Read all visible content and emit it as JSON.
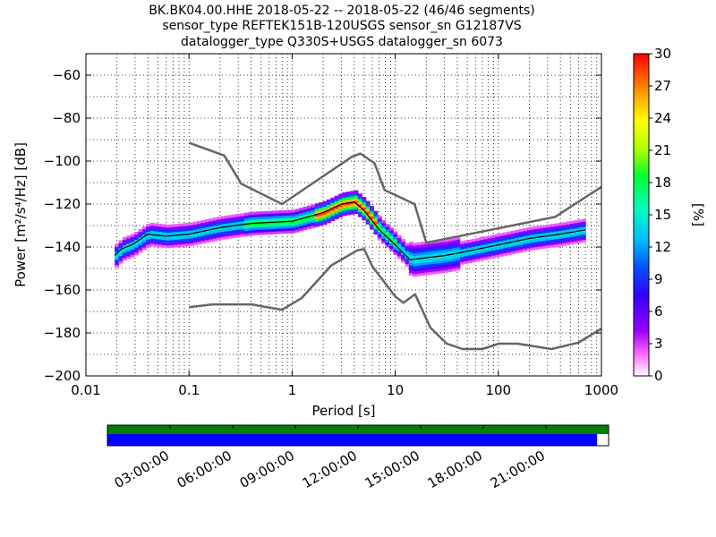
{
  "title_lines": [
    "BK.BK04.00.HHE   2018-05-22 -- 2018-05-22  (46/46 segments)",
    "sensor_type REFTEK151B-120USGS sensor_sn G12187VS",
    "datalogger_type Q330S+USGS datalogger_sn 6073"
  ],
  "colors": {
    "model_curve": "#666666",
    "mode_line": "#000000",
    "coverage_top": "#008000",
    "coverage_bottom": "#0000ff"
  },
  "chart_data": [
    {
      "type": "heatmap",
      "title": "BK.BK04.00.HHE   2018-05-22 -- 2018-05-22  (46/46 segments)",
      "xlabel": "Period [s]",
      "ylabel": "Power [m²/s⁴/Hz] [dB]",
      "xscale": "log",
      "xlim": [
        0.01,
        1000
      ],
      "ylim": [
        -200,
        -50
      ],
      "x_ticks": [
        "0.01",
        "0.1",
        "1",
        "10",
        "100",
        "1000"
      ],
      "y_ticks": [
        "−60",
        "−80",
        "−100",
        "−120",
        "−140",
        "−160",
        "−180",
        "−200"
      ],
      "colorbar": {
        "label": "[%]",
        "range": [
          0,
          30
        ],
        "ticks": [
          "0",
          "3",
          "6",
          "9",
          "12",
          "15",
          "18",
          "21",
          "24",
          "27",
          "30"
        ]
      },
      "grid": true,
      "series": [
        {
          "name": "",
          "style": "upper-model",
          "x": [
            0.1,
            0.22,
            0.32,
            0.8,
            3.8,
            4.6,
            6.3,
            7.9,
            15.4,
            20,
            354.8,
            1000
          ],
          "y": [
            -91.5,
            -97.4,
            -110.5,
            -120,
            -98,
            -96.5,
            -101,
            -113.5,
            -120,
            -138,
            -126,
            -112
          ]
        },
        {
          "name": "",
          "style": "lower-model",
          "x": [
            0.1,
            0.17,
            0.4,
            0.8,
            1.24,
            2.4,
            4.3,
            5,
            6,
            10,
            12,
            15.6,
            21.9,
            31.6,
            45,
            70,
            101,
            154,
            328,
            600,
            1000
          ],
          "y": [
            -168,
            -166.7,
            -166.7,
            -169.2,
            -163.7,
            -148.6,
            -141.5,
            -141,
            -149,
            -163,
            -166,
            -162,
            -177.5,
            -185,
            -187.5,
            -187.5,
            -185,
            -185,
            -187.5,
            -184.5,
            -178
          ]
        },
        {
          "name": "",
          "style": "mode",
          "x": [
            0.019,
            0.022,
            0.028,
            0.04,
            0.06,
            0.1,
            0.2,
            0.4,
            1,
            2,
            3,
            4,
            5,
            7,
            10,
            14,
            20,
            30,
            50,
            100,
            200,
            400,
            700
          ],
          "y": [
            -144,
            -141,
            -139,
            -134,
            -135,
            -134,
            -131,
            -129,
            -128,
            -124,
            -120,
            -119,
            -123,
            -132,
            -139,
            -146,
            -145,
            -144,
            -142,
            -139,
            -136,
            -134,
            -132
          ]
        }
      ]
    },
    {
      "type": "bar",
      "title": "",
      "time_ticks": [
        "03:00:00",
        "06:00:00",
        "09:00:00",
        "12:00:00",
        "15:00:00",
        "18:00:00",
        "21:00:00"
      ],
      "coverage": [
        {
          "name": "",
          "fraction": 1.0
        },
        {
          "name": "",
          "fraction": 0.977
        }
      ]
    }
  ]
}
